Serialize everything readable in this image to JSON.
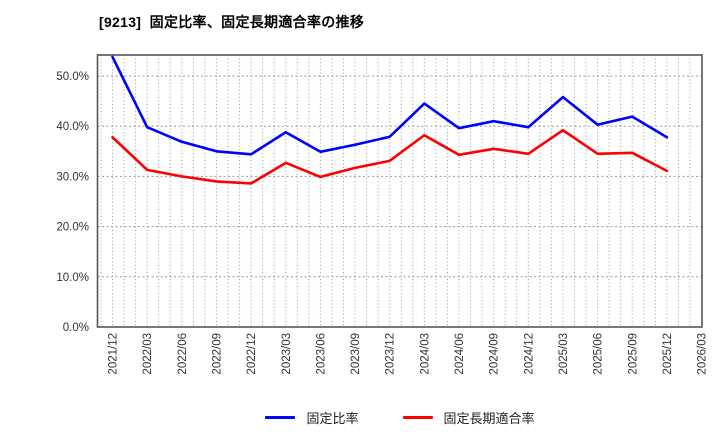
{
  "title": "[9213]  固定比率、固定長期適合率の推移",
  "chart_data": {
    "type": "line",
    "title": "[9213]  固定比率、固定長期適合率の推移",
    "categories": [
      "2021/12",
      "2022/03",
      "2022/06",
      "2022/09",
      "2022/12",
      "2023/03",
      "2023/06",
      "2023/09",
      "2023/12",
      "2024/03",
      "2024/06",
      "2024/09",
      "2024/12",
      "2025/03",
      "2025/06",
      "2025/09",
      "2025/12",
      "2026/03"
    ],
    "series": [
      {
        "name": "固定比率",
        "color": "#0000ff",
        "values": [
          53.8,
          39.8,
          36.9,
          35.0,
          34.4,
          38.8,
          34.9,
          36.3,
          37.9,
          44.5,
          39.6,
          41.0,
          39.8,
          45.8,
          40.3,
          41.9,
          37.8
        ]
      },
      {
        "name": "固定長期適合率",
        "color": "#ff0000",
        "values": [
          37.8,
          31.3,
          30.0,
          29.0,
          28.6,
          32.7,
          29.9,
          31.7,
          33.1,
          38.2,
          34.3,
          35.5,
          34.5,
          39.2,
          34.5,
          34.7,
          31.1
        ]
      }
    ],
    "y_ticks": [
      "0.0%",
      "10.0%",
      "20.0%",
      "30.0%",
      "40.0%",
      "50.0%"
    ],
    "ylim": [
      0,
      54.2
    ],
    "xlabel": "",
    "ylabel": "",
    "grid": "dotted, horizontal every 10%, vertical monthly",
    "legend_position": "bottom",
    "colors": {
      "grid": "#9a9a9a",
      "border": "#555555",
      "tick_text": "#333333"
    }
  }
}
